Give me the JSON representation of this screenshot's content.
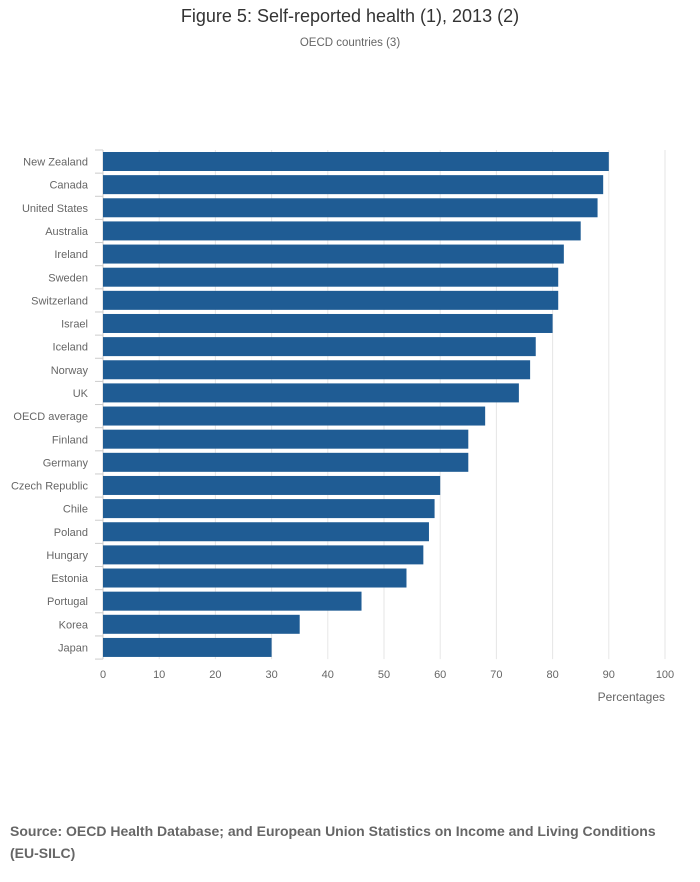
{
  "page": {
    "title": "Figure 5: Self-reported health (1), 2013 (2)",
    "subtitle": "OECD countries (3)",
    "source": "Source: OECD Health Database; and European Union Statistics on Income and Living Conditions (EU-SILC)"
  },
  "chart_data": {
    "type": "bar",
    "orientation": "horizontal",
    "title": "Figure 5: Self-reported health (1), 2013 (2)",
    "subtitle": "OECD countries (3)",
    "xlabel": "Percentages",
    "ylabel": "",
    "xlim": [
      0,
      100
    ],
    "ticks": [
      0,
      10,
      20,
      30,
      40,
      50,
      60,
      70,
      80,
      90,
      100
    ],
    "grid": true,
    "bar_color": "#1f5c94",
    "categories": [
      "New Zealand",
      "Canada",
      "United States",
      "Australia",
      "Ireland",
      "Sweden",
      "Switzerland",
      "Israel",
      "Iceland",
      "Norway",
      "UK",
      "OECD average",
      "Finland",
      "Germany",
      "Czech Republic",
      "Chile",
      "Poland",
      "Hungary",
      "Estonia",
      "Portugal",
      "Korea",
      "Japan"
    ],
    "values": [
      90,
      89,
      88,
      85,
      82,
      81,
      81,
      80,
      77,
      76,
      74,
      68,
      65,
      65,
      60,
      59,
      58,
      57,
      54,
      46,
      35,
      30
    ]
  }
}
